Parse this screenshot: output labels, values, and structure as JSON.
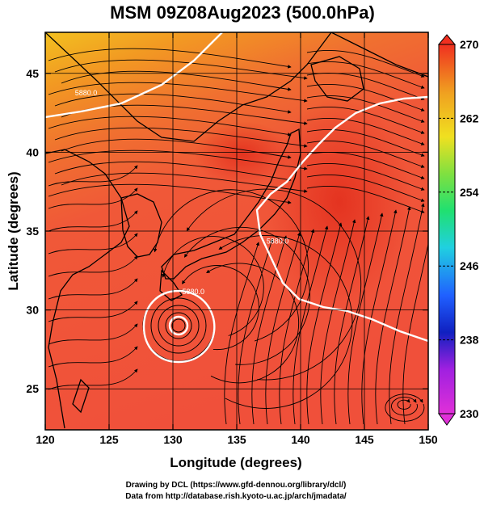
{
  "title": "MSM 09Z08Aug2023 (500.0hPa)",
  "x_axis": {
    "label": "Longitude (degrees)",
    "range": [
      120,
      150
    ],
    "ticks": [
      "120",
      "125",
      "130",
      "135",
      "140",
      "145",
      "150"
    ]
  },
  "y_axis": {
    "label": "Latitude  (degrees)",
    "range": [
      22.4,
      47.6
    ],
    "ticks": [
      "25",
      "30",
      "35",
      "40",
      "45"
    ]
  },
  "colorbar": {
    "range": [
      230,
      270
    ],
    "ticks": [
      "230",
      "238",
      "246",
      "254",
      "262",
      "270"
    ],
    "colors": [
      "#e030d8",
      "#1020c0",
      "#20a0ff",
      "#20e0a0",
      "#80e040",
      "#f0e020",
      "#f0a020",
      "#f04020"
    ]
  },
  "contour_labels": [
    {
      "text": "5880.0",
      "lon": 123.2,
      "lat": 43.6
    },
    {
      "text": "5880.0",
      "lon": 138.2,
      "lat": 34.2
    },
    {
      "text": "5880.0",
      "lon": 131.6,
      "lat": 31.0
    }
  ],
  "credits": {
    "line1": "Drawing by DCL (https://www.gfd-dennou.org/library/dcl/)",
    "line2": "Data from http://database.rish.kyoto-u.ac.jp/arch/jmadata/"
  },
  "colors": {
    "field_warm": "#f0503a",
    "field_north": "#f2a020",
    "contour": "#ffffff"
  }
}
